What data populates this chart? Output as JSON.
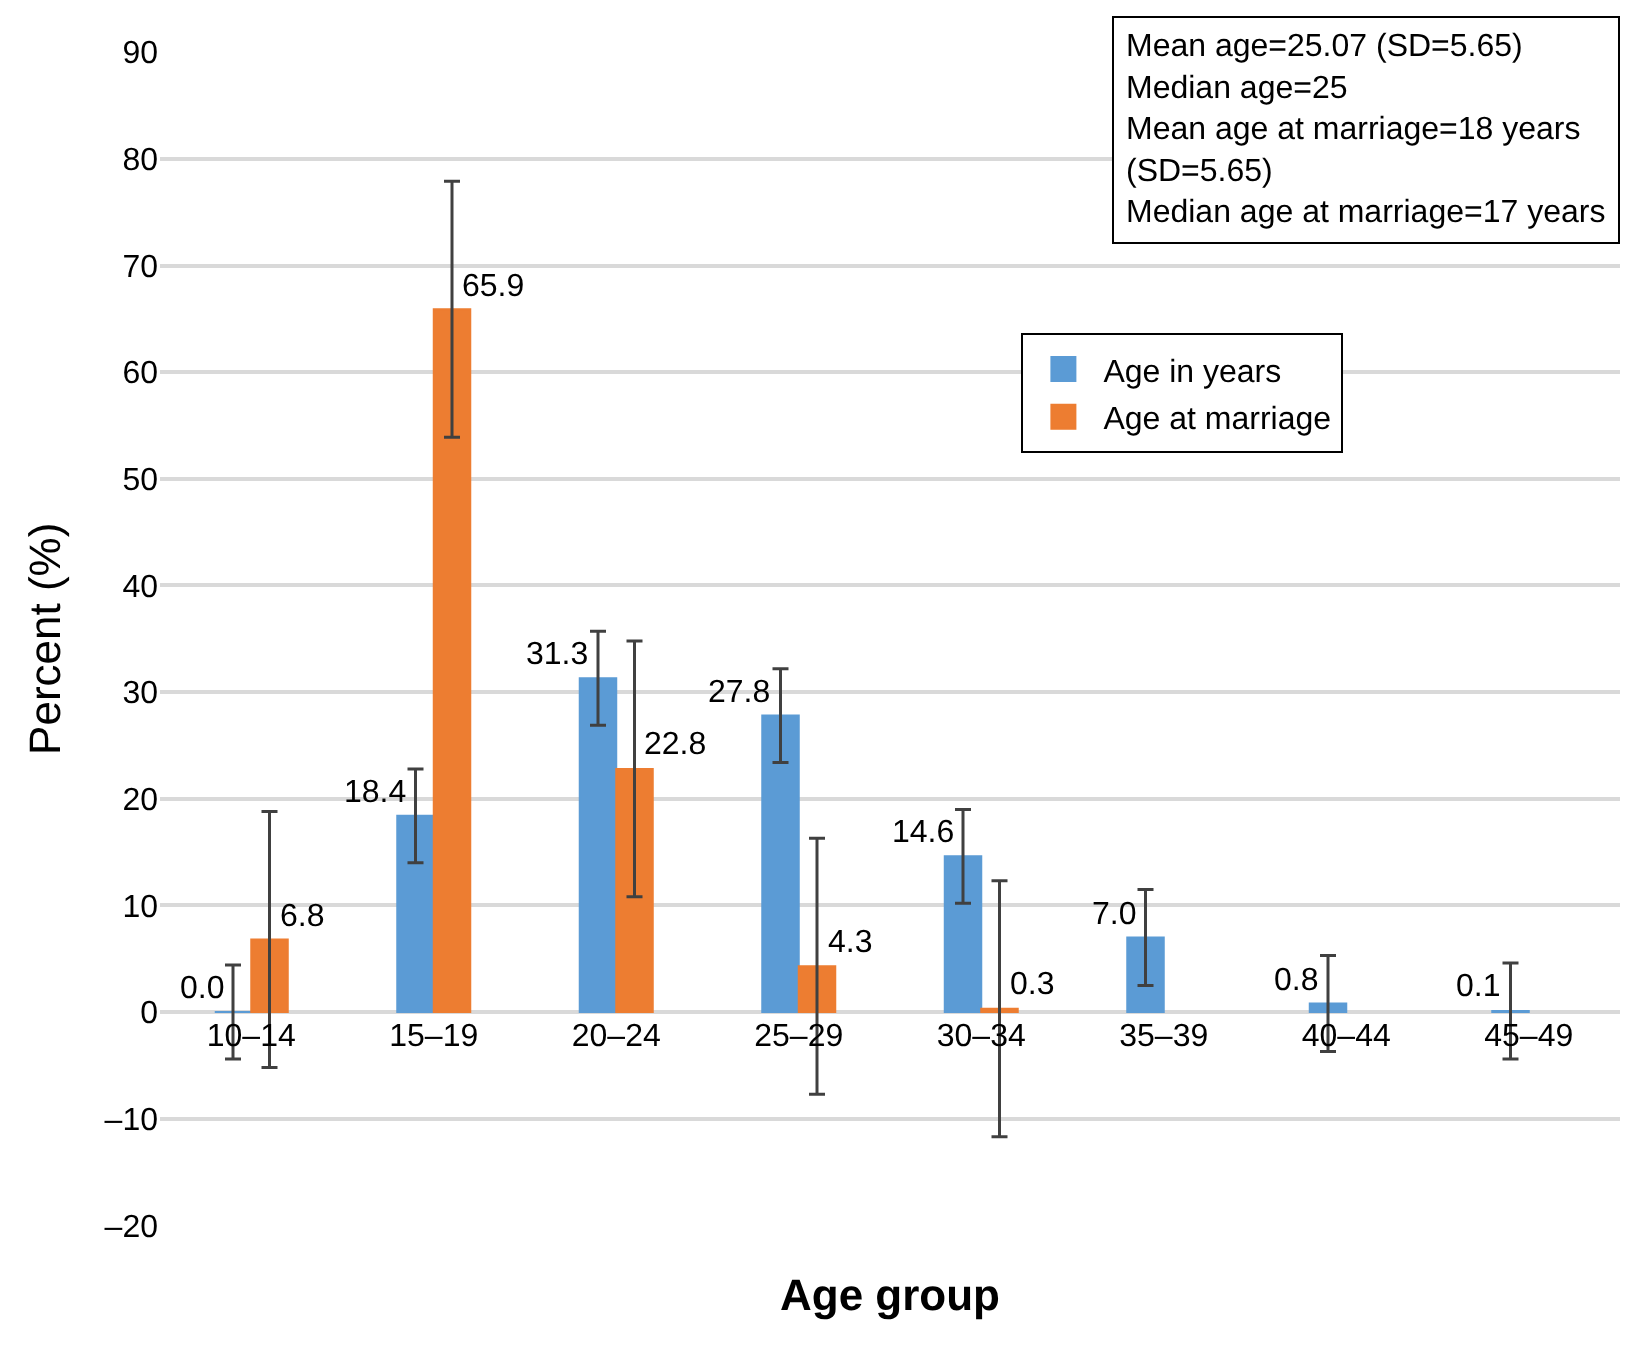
{
  "chart_data": {
    "type": "bar",
    "xlabel": "Age group",
    "ylabel": "Percent (%)",
    "categories": [
      "10–14",
      "15–19",
      "20–24",
      "25–29",
      "30–34",
      "35–39",
      "40–44",
      "45–49"
    ],
    "series": [
      {
        "name": "Age in years",
        "color": "#5b9bd5",
        "values": [
          0.0,
          18.4,
          31.3,
          27.8,
          14.6,
          7.0,
          0.8,
          0.1
        ],
        "errors": [
          4.4,
          4.4,
          4.4,
          4.4,
          4.4,
          4.5,
          4.5,
          4.5
        ],
        "value_labels": [
          "0.0",
          "18.4",
          "31.3",
          "27.8",
          "14.6",
          "7.0",
          "0.8",
          "0.1"
        ]
      },
      {
        "name": "Age at marriage",
        "color": "#ed7d31",
        "values": [
          6.8,
          65.9,
          22.8,
          4.3,
          0.3,
          null,
          null,
          null
        ],
        "errors": [
          12,
          12,
          12,
          12,
          12,
          null,
          null,
          null
        ],
        "value_labels": [
          "6.8",
          "65.9",
          "22.8",
          "4.3",
          "0.3",
          null,
          null,
          null
        ]
      }
    ],
    "ylim": [
      -20,
      90
    ],
    "yticks": [
      {
        "value": -20,
        "label": "–20"
      },
      {
        "value": -10,
        "label": "–10"
      },
      0,
      10,
      20,
      30,
      40,
      50,
      60,
      70,
      80,
      90
    ],
    "grid": "y",
    "legend": "top right",
    "annotations": [
      "Mean age=25.07 (SD=5.65)",
      "Median age=25",
      "Mean age at marriage=18 years",
      "(SD=5.65)",
      "Median age at marriage=17 years"
    ]
  }
}
